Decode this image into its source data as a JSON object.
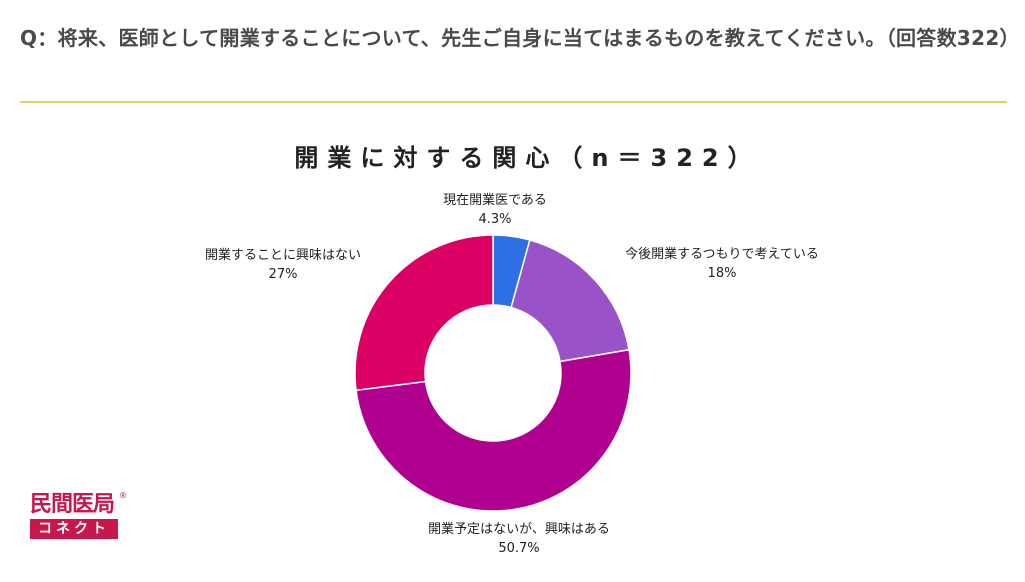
{
  "question": "Q：将来、医師として開業することについて、先生ご自身に当てはまるものを教えてください。（回答数322）",
  "logo": {
    "top_text": "民間医局",
    "bottom_text": "コネクト",
    "registered_mark": "®"
  },
  "colors": {
    "rule": "#e6cf6a",
    "slices": [
      "#2f6fe4",
      "#9a52c9",
      "#b0008f",
      "#db0063"
    ]
  },
  "chart_data": {
    "type": "pie",
    "donut": true,
    "title": "開業に対する関心（n＝322）",
    "n": 322,
    "slices": [
      {
        "label": "現在開業医である",
        "value_label": "4.3%",
        "value": 4.3
      },
      {
        "label": "今後開業するつもりで考えている",
        "value_label": "18%",
        "value": 18
      },
      {
        "label": "開業予定はないが、興味はある",
        "value_label": "50.7%",
        "value": 50.7
      },
      {
        "label": "開業することに興味はない",
        "value_label": "27%",
        "value": 27
      }
    ]
  }
}
